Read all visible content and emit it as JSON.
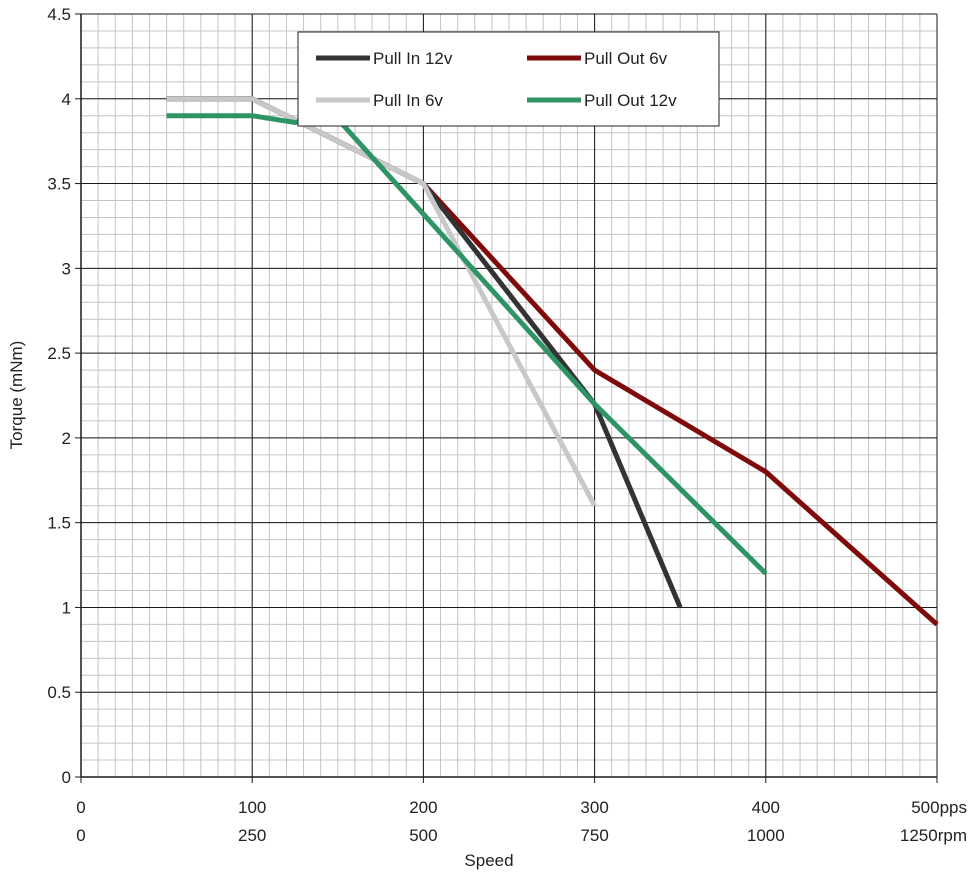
{
  "chart_data": {
    "type": "line",
    "xlabel": "Speed",
    "ylabel": "Torque (mNm)",
    "xlim": [
      0,
      500
    ],
    "ylim": [
      0,
      4.5
    ],
    "grid": true,
    "minor_grid": true,
    "legend_position": "top-center",
    "x_ticks": [
      {
        "value": 0,
        "label1": "0",
        "label2": "0"
      },
      {
        "value": 100,
        "label1": "100",
        "label2": "250"
      },
      {
        "value": 200,
        "label1": "200",
        "label2": "500"
      },
      {
        "value": 300,
        "label1": "300",
        "label2": "750"
      },
      {
        "value": 400,
        "label1": "400",
        "label2": "1000"
      },
      {
        "value": 500,
        "label1": "500pps",
        "label2": "1250rpm"
      }
    ],
    "y_ticks": [
      {
        "value": 0,
        "label": "0"
      },
      {
        "value": 0.5,
        "label": "0.5"
      },
      {
        "value": 1,
        "label": "1"
      },
      {
        "value": 1.5,
        "label": "1.5"
      },
      {
        "value": 2,
        "label": "2"
      },
      {
        "value": 2.5,
        "label": "2.5"
      },
      {
        "value": 3,
        "label": "3"
      },
      {
        "value": 3.5,
        "label": "3.5"
      },
      {
        "value": 4,
        "label": "4"
      },
      {
        "value": 4.5,
        "label": "4.5"
      }
    ],
    "series": [
      {
        "name": "Pull Out 6v",
        "color": "#7f0a0a",
        "points": [
          [
            50,
            4.0
          ],
          [
            100,
            4.0
          ],
          [
            200,
            3.5
          ],
          [
            300,
            2.4
          ],
          [
            400,
            1.8
          ],
          [
            500,
            0.9
          ]
        ]
      },
      {
        "name": "Pull In 12v",
        "color": "#333333",
        "points": [
          [
            50,
            4.0
          ],
          [
            100,
            4.0
          ],
          [
            200,
            3.5
          ],
          [
            300,
            2.2
          ],
          [
            350,
            1.0
          ]
        ]
      },
      {
        "name": "Pull In 6v",
        "color": "#c8c8c8",
        "points": [
          [
            50,
            4.0
          ],
          [
            100,
            4.0
          ],
          [
            200,
            3.5
          ],
          [
            300,
            1.6
          ]
        ]
      },
      {
        "name": "Pull Out 12v",
        "color": "#2e9463",
        "points": [
          [
            50,
            3.9
          ],
          [
            100,
            3.9
          ],
          [
            125,
            3.86
          ],
          [
            150,
            3.88
          ],
          [
            300,
            2.2
          ],
          [
            400,
            1.2
          ]
        ]
      }
    ],
    "legend": [
      {
        "name": "Pull In 12v",
        "color": "#333333"
      },
      {
        "name": "Pull Out 6v",
        "color": "#7f0a0a"
      },
      {
        "name": "Pull In 6v",
        "color": "#c8c8c8"
      },
      {
        "name": "Pull Out 12v",
        "color": "#2e9463"
      }
    ]
  }
}
